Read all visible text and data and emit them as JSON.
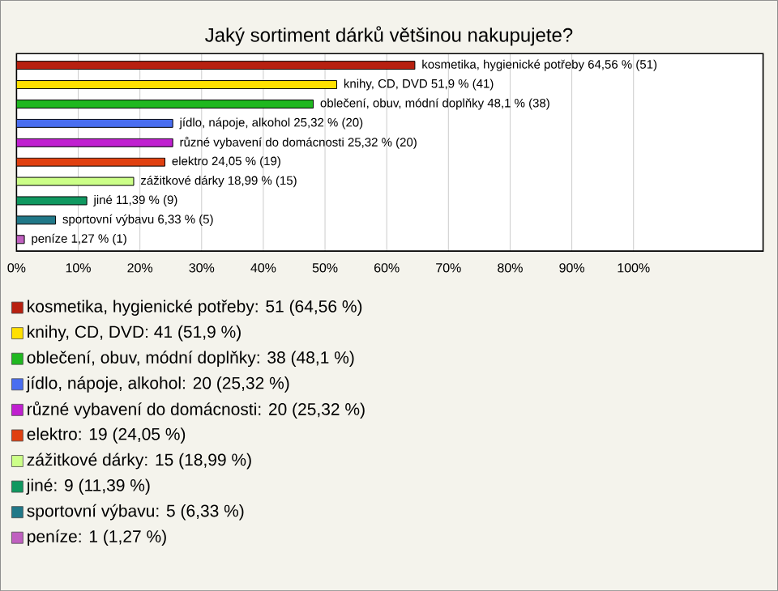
{
  "chart_data": {
    "type": "bar",
    "orientation": "horizontal",
    "title": "Jaký sortiment dárků většinou nakupujete?",
    "categories": [
      null,
      null,
      null,
      null,
      null,
      null,
      null,
      null,
      null,
      null
    ],
    "values": [
      64.56,
      51.9,
      48.1,
      25.32,
      25.32,
      24.05,
      18.99,
      11.39,
      6.33,
      1.27
    ],
    "value_labels": [
      "kosmetika, hygienické potřeby 64,56 % (51)",
      "knihy, CD, DVD 51,9 % (41)",
      "oblečení, obuv, módní doplňky 48,1 % (38)",
      "jídlo, nápoje, alkohol 25,32 % (20)",
      "různé vybavení do domácnosti 25,32 % (20)",
      "elektro 24,05 % (19)",
      "zážitkové dárky 18,99 % (15)",
      "jiné 11,39 % (9)",
      "sportovní výbavu 6,33 % (5)",
      "peníze 1,27 % (1)"
    ],
    "colors": [
      "#b82010",
      "#ffe000",
      "#20b820",
      "#4a6ef0",
      "#c020d0",
      "#e04010",
      "#ccff88",
      "#109860",
      "#207888",
      "#c060c0"
    ],
    "xlim": [
      0,
      121
    ],
    "xticks": [
      {
        "value": 0,
        "label": "0%"
      },
      {
        "value": 10,
        "label": "10%"
      },
      {
        "value": 20,
        "label": "20%"
      },
      {
        "value": 30,
        "label": "30%"
      },
      {
        "value": 40,
        "label": "40%"
      },
      {
        "value": 50,
        "label": "50%"
      },
      {
        "value": 60,
        "label": "60%"
      },
      {
        "value": 70,
        "label": "70%"
      },
      {
        "value": 80,
        "label": "80%"
      },
      {
        "value": 90,
        "label": "90%"
      },
      {
        "value": 100,
        "label": "100%"
      }
    ],
    "grid": "x",
    "annotations": [
      "kosmetika, hygienické potřeby: 51 (64,56 %)",
      "knihy, CD, DVD: 41 (51,9 %)",
      "oblečení, obuv, módní doplňky: 38 (48,1 %)",
      "jídlo, nápoje, alkohol: 20 (25,32 %)",
      "různé vybavení do domácnosti: 20 (25,32 %)",
      "elektro: 19 (24,05 %)",
      "zážitkové dárky: 15 (18,99 %)",
      "jiné: 9 (11,39 %)",
      "sportovní výbavu: 5 (6,33 %)",
      "peníze: 1 (1,27 %)"
    ]
  }
}
